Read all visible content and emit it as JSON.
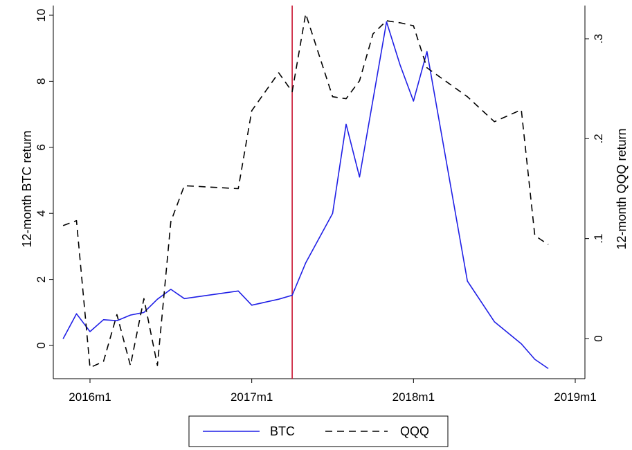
{
  "chart_data": {
    "type": "line",
    "x_unit": "month",
    "x_ticks": [
      {
        "value": "2016-01",
        "label": "2016m1"
      },
      {
        "value": "2017-01",
        "label": "2017m1"
      },
      {
        "value": "2018-01",
        "label": "2018m1"
      },
      {
        "value": "2019-01",
        "label": "2019m1"
      }
    ],
    "xlim": [
      "2015-10",
      "2019-02"
    ],
    "y_left": {
      "label": "12-month BTC return",
      "lim": [
        -1,
        10
      ],
      "ticks": [
        0,
        2,
        4,
        6,
        8,
        10
      ],
      "tick_labels": [
        "0",
        "2",
        "4",
        "6",
        "8",
        "10"
      ]
    },
    "y_right": {
      "label": "12-month QQQ return",
      "lim": [
        -0.04,
        0.335
      ],
      "ticks": [
        0,
        0.1,
        0.2,
        0.3
      ],
      "tick_labels": [
        "0",
        ".1",
        ".2",
        ".3"
      ]
    },
    "vline": {
      "x": "2017-04",
      "color": "#c8102e"
    },
    "grid": false,
    "legend_position": "bottom",
    "series": [
      {
        "name": "BTC",
        "axis": "left",
        "color": "#1f1fe6",
        "style": "solid",
        "x": [
          "2015-11",
          "2015-12",
          "2016-01",
          "2016-02",
          "2016-03",
          "2016-04",
          "2016-05",
          "2016-06",
          "2016-07",
          "2016-08",
          "2016-12",
          "2017-01",
          "2017-03",
          "2017-04",
          "2017-05",
          "2017-07",
          "2017-08",
          "2017-09",
          "2017-11",
          "2017-12",
          "2018-01",
          "2018-02",
          "2018-05",
          "2018-07",
          "2018-09",
          "2018-10",
          "2018-11"
        ],
        "values": [
          0.2,
          0.96,
          0.42,
          0.78,
          0.75,
          0.92,
          1.0,
          1.4,
          1.7,
          1.42,
          1.65,
          1.22,
          1.4,
          1.52,
          2.5,
          4.0,
          6.7,
          5.1,
          9.8,
          8.5,
          7.4,
          8.9,
          1.95,
          0.72,
          0.05,
          -0.42,
          -0.7
        ]
      },
      {
        "name": "QQQ",
        "axis": "right",
        "color": "#000000",
        "style": "dashed",
        "x": [
          "2015-11",
          "2015-12",
          "2016-01",
          "2016-02",
          "2016-03",
          "2016-04",
          "2016-05",
          "2016-06",
          "2016-07",
          "2016-08",
          "2016-12",
          "2017-01",
          "2017-03",
          "2017-04",
          "2017-05",
          "2017-07",
          "2017-08",
          "2017-09",
          "2017-10",
          "2017-11",
          "2017-12",
          "2018-01",
          "2018-02",
          "2018-05",
          "2018-07",
          "2018-09",
          "2018-10",
          "2018-11"
        ],
        "values": [
          0.113,
          0.118,
          -0.029,
          -0.023,
          0.024,
          -0.027,
          0.04,
          -0.027,
          0.117,
          0.153,
          0.15,
          0.228,
          0.266,
          0.247,
          0.325,
          0.242,
          0.24,
          0.258,
          0.305,
          0.318,
          0.316,
          0.313,
          0.271,
          0.242,
          0.217,
          0.229,
          0.103,
          0.094
        ]
      }
    ]
  }
}
